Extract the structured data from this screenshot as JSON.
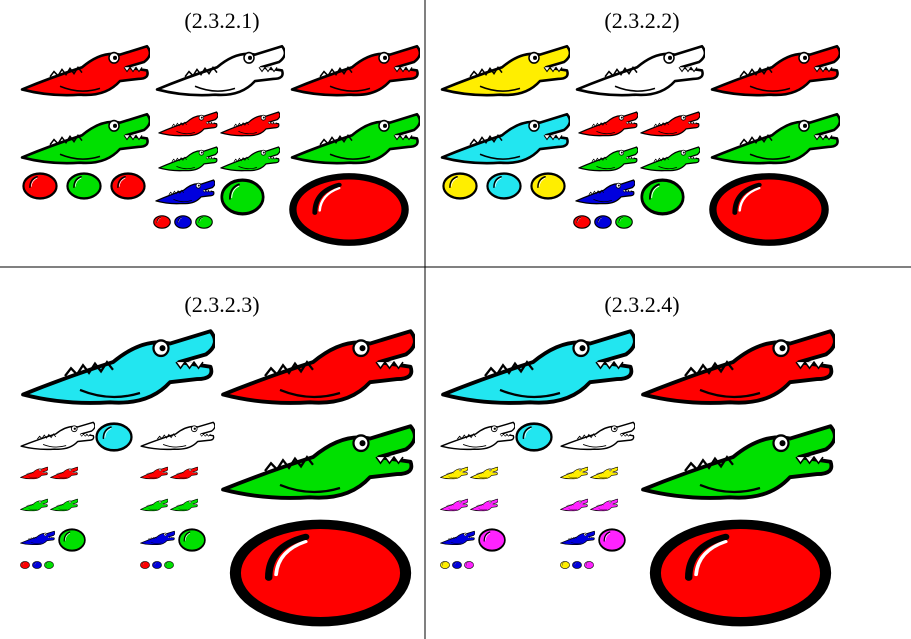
{
  "panels": [
    {
      "label": "(2.3.2.1)"
    },
    {
      "label": "(2.3.2.2)"
    },
    {
      "label": "(2.3.2.3)"
    },
    {
      "label": "(2.3.2.4)"
    }
  ]
}
